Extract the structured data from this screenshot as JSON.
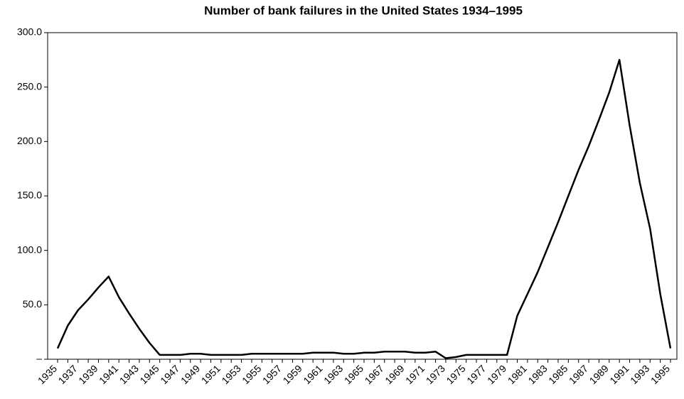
{
  "chart_data": {
    "type": "line",
    "title": "Number of bank failures in the United States 1934–1995",
    "categories": [
      "1935",
      null,
      "1937",
      null,
      "1939",
      null,
      "1941",
      null,
      "1943",
      null,
      "1945",
      null,
      "1947",
      null,
      "1949",
      null,
      "1951",
      null,
      "1953",
      null,
      "1955",
      null,
      "1957",
      null,
      "1959",
      null,
      "1961",
      null,
      "1963",
      null,
      "1965",
      null,
      "1967",
      null,
      "1969",
      null,
      "1971",
      null,
      "1973",
      null,
      "1975",
      null,
      "1977",
      null,
      "1979",
      null,
      "1981",
      null,
      "1983",
      null,
      "1985",
      null,
      "1987",
      null,
      "1989",
      null,
      "1991",
      null,
      "1993",
      null,
      "1995"
    ],
    "values": [
      10,
      31,
      45,
      55,
      66,
      76,
      57,
      42,
      28,
      15,
      4,
      4,
      4,
      5,
      5,
      4,
      4,
      4,
      4,
      5,
      5,
      5,
      5,
      5,
      5,
      6,
      6,
      6,
      5,
      5,
      6,
      6,
      7,
      7,
      7,
      6,
      6,
      7,
      1,
      2,
      4,
      4,
      4,
      4,
      4,
      40,
      60,
      80,
      103,
      126,
      150,
      174,
      196,
      220,
      245,
      275,
      215,
      162,
      120,
      60,
      10
    ],
    "color": "#000000",
    "ylim": [
      0,
      300
    ],
    "yticks": [
      {
        "value": 0,
        "label": "–"
      },
      {
        "value": 50,
        "label": "50.0"
      },
      {
        "value": 100,
        "label": "100.0"
      },
      {
        "value": 150,
        "label": "150.0"
      },
      {
        "value": 200,
        "label": "200.0"
      },
      {
        "value": 250,
        "label": "250.0"
      },
      {
        "value": 300,
        "label": "300.0"
      }
    ]
  }
}
